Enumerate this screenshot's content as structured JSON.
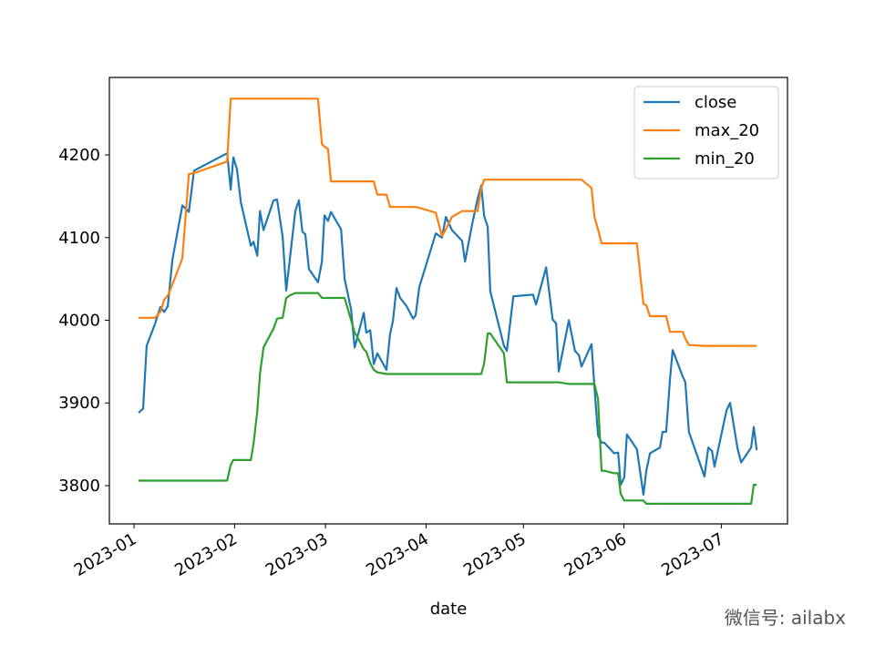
{
  "chart_data": {
    "type": "line",
    "xlabel": "date",
    "watermark": "微信号: ailabx",
    "x": [
      1.4,
      2.8,
      3.9,
      6.5,
      8.1,
      9.3,
      10.4,
      11.8,
      14.9,
      16.9,
      18.5,
      28.7,
      29.8,
      30.6,
      31.7,
      32.9,
      36,
      36.8,
      38,
      38.8,
      39.9,
      43,
      44.1,
      45.8,
      46.9,
      48,
      49.7,
      50.8,
      51.9,
      52.8,
      53.9,
      56.7,
      57.9,
      58.7,
      59.8,
      60.7,
      63.8,
      64.9,
      66.9,
      68,
      68.8,
      70.8,
      71.6,
      72.8,
      73.9,
      75,
      77.8,
      78.9,
      79.8,
      80.9,
      82,
      84,
      86,
      86.8,
      87.9,
      93,
      94.9,
      96.1,
      98,
      101.1,
      102,
      104.2,
      105.9,
      107,
      107.9,
      109,
      109.8,
      114,
      114.9,
      116.9,
      123,
      123.9,
      127,
      129,
      130.1,
      130.9,
      134,
      135.9,
      137.1,
      137.9,
      141,
      141.9,
      143,
      144.1,
      144.9,
      148,
      149.2,
      150,
      151.1,
      151.9,
      155,
      157,
      157.9,
      159,
      162.1,
      162.9,
      164,
      165.2,
      166,
      169.1,
      169.9,
      171,
      175.8,
      177,
      178.1,
      178.9,
      182.6,
      183.7,
      186,
      187.1,
      190.2,
      191,
      191.9
    ],
    "series": [
      {
        "name": "close",
        "color": "#1f77b4",
        "values": [
          3888,
          3893,
          3969,
          3996,
          4016,
          4010,
          4017,
          4073,
          4139,
          4131,
          4181,
          4202,
          4158,
          4197,
          4183,
          4143,
          4090,
          4095,
          4078,
          4132,
          4109,
          4145,
          4146,
          4101,
          4036,
          4073,
          4132,
          4145,
          4107,
          4104,
          4062,
          4046,
          4071,
          4127,
          4120,
          4131,
          4110,
          4050,
          4013,
          3967,
          3979,
          4009,
          3985,
          3988,
          3947,
          3960,
          3940,
          3983,
          3999,
          4039,
          4027,
          4017,
          4002,
          4006,
          4040,
          4105,
          4100,
          4125,
          4109,
          4096,
          4071,
          4116,
          4147,
          4163,
          4126,
          4113,
          4035,
          3969,
          3963,
          4029,
          4031,
          4019,
          4064,
          4001,
          3996,
          3938,
          4000,
          3963,
          3958,
          3944,
          3971,
          3919,
          3861,
          3852,
          3852,
          3839,
          3840,
          3801,
          3810,
          3862,
          3844,
          3789,
          3818,
          3839,
          3846,
          3865,
          3865,
          3929,
          3964,
          3932,
          3925,
          3865,
          3811,
          3846,
          3842,
          3823,
          3891,
          3900,
          3845,
          3828,
          3846,
          3871,
          3843
        ]
      },
      {
        "name": "max_20",
        "color": "#ff7f0e",
        "values": [
          4003,
          4003,
          4003,
          4003,
          4010,
          4025,
          4030,
          4043,
          4075,
          4177,
          4178,
          4192,
          4268,
          4268,
          4268,
          4268,
          4268,
          4268,
          4268,
          4268,
          4268,
          4268,
          4268,
          4268,
          4268,
          4268,
          4268,
          4268,
          4268,
          4268,
          4268,
          4268,
          4213,
          4210,
          4207,
          4168,
          4168,
          4168,
          4168,
          4168,
          4168,
          4168,
          4168,
          4168,
          4168,
          4152,
          4152,
          4137,
          4137,
          4137,
          4137,
          4137,
          4137,
          4137,
          4136,
          4130,
          4102,
          4110,
          4125,
          4132,
          4132,
          4132,
          4132,
          4160,
          4170,
          4170,
          4170,
          4170,
          4170,
          4170,
          4170,
          4170,
          4170,
          4170,
          4170,
          4170,
          4170,
          4170,
          4170,
          4170,
          4160,
          4125,
          4110,
          4093,
          4093,
          4093,
          4093,
          4093,
          4093,
          4093,
          4093,
          4020,
          4018,
          4005,
          4005,
          4005,
          4005,
          3986,
          3986,
          3986,
          3978,
          3970,
          3969,
          3969,
          3969,
          3969,
          3969,
          3969,
          3969,
          3969,
          3969,
          3969,
          3969
        ]
      },
      {
        "name": "min_20",
        "color": "#2ca02c",
        "values": [
          3806,
          3806,
          3806,
          3806,
          3806,
          3806,
          3806,
          3806,
          3806,
          3806,
          3806,
          3806,
          3825,
          3831,
          3831,
          3831,
          3831,
          3850,
          3890,
          3935,
          3967,
          3990,
          4002,
          4003,
          4027,
          4030,
          4033,
          4033,
          4033,
          4033,
          4033,
          4033,
          4027,
          4027,
          4027,
          4027,
          4027,
          4027,
          4000,
          3985,
          3980,
          3965,
          3962,
          3948,
          3940,
          3937,
          3935,
          3935,
          3935,
          3935,
          3935,
          3935,
          3935,
          3935,
          3935,
          3935,
          3935,
          3935,
          3935,
          3935,
          3935,
          3935,
          3935,
          3935,
          3948,
          3984,
          3984,
          3960,
          3925,
          3925,
          3925,
          3925,
          3925,
          3925,
          3925,
          3925,
          3923,
          3923,
          3923,
          3923,
          3923,
          3923,
          3905,
          3818,
          3818,
          3815,
          3815,
          3790,
          3782,
          3782,
          3782,
          3782,
          3778,
          3778,
          3778,
          3778,
          3778,
          3778,
          3778,
          3778,
          3778,
          3778,
          3778,
          3778,
          3778,
          3778,
          3778,
          3778,
          3778,
          3778,
          3778,
          3801,
          3801
        ]
      }
    ],
    "xlim": [
      -7.6,
      201.4
    ],
    "xticks": [
      {
        "value": 0,
        "label": "2023-01"
      },
      {
        "value": 31,
        "label": "2023-02"
      },
      {
        "value": 59,
        "label": "2023-03"
      },
      {
        "value": 90,
        "label": "2023-04"
      },
      {
        "value": 120,
        "label": "2023-05"
      },
      {
        "value": 151,
        "label": "2023-06"
      },
      {
        "value": 181,
        "label": "2023-07"
      }
    ],
    "ylim": [
      3753.7,
      4293.7
    ],
    "yticks": [
      3800,
      3900,
      4000,
      4100,
      4200
    ],
    "legend": "upper right"
  }
}
